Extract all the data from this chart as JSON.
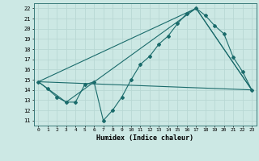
{
  "xlabel": "Humidex (Indice chaleur)",
  "bg_color": "#cce8e4",
  "grid_color": "#b8d8d4",
  "line_color": "#1a6b6b",
  "xlim": [
    -0.5,
    23.5
  ],
  "ylim": [
    10.5,
    22.5
  ],
  "yticks": [
    11,
    12,
    13,
    14,
    15,
    16,
    17,
    18,
    19,
    20,
    21,
    22
  ],
  "xticks": [
    0,
    1,
    2,
    3,
    4,
    5,
    6,
    7,
    8,
    9,
    10,
    11,
    12,
    13,
    14,
    15,
    16,
    17,
    18,
    19,
    20,
    21,
    22,
    23
  ],
  "line1_x": [
    0,
    1,
    2,
    3,
    4,
    5,
    6,
    7,
    8,
    9,
    10,
    11,
    12,
    13,
    14,
    15,
    16,
    17,
    18,
    19,
    20,
    21,
    22,
    23
  ],
  "line1_y": [
    14.8,
    14.1,
    13.3,
    12.8,
    12.8,
    14.5,
    14.8,
    11.0,
    12.0,
    13.3,
    15.0,
    16.5,
    17.3,
    18.5,
    19.3,
    20.5,
    21.5,
    22.0,
    21.3,
    20.3,
    19.5,
    17.2,
    15.8,
    14.0
  ],
  "line2_x": [
    0,
    23
  ],
  "line2_y": [
    14.8,
    14.0
  ],
  "line3_x": [
    0,
    3,
    17,
    23
  ],
  "line3_y": [
    14.8,
    12.8,
    22.0,
    14.0
  ],
  "line4_x": [
    0,
    17,
    23
  ],
  "line4_y": [
    14.8,
    22.0,
    14.0
  ]
}
